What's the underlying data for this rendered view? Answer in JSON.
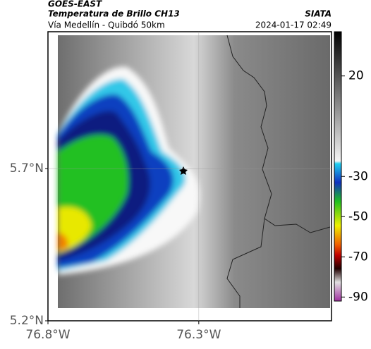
{
  "header": {
    "source": "GOES-EAST",
    "title": "Temperatura de Brillo CH13",
    "subtitle": "Vía Medellín - Quibdó 50km",
    "agency": "SIATA",
    "datetime": "2024-01-17 02:49"
  },
  "map": {
    "xlim": [
      -76.8,
      -75.86
    ],
    "ylim": [
      5.2,
      6.15
    ],
    "xticks": [
      {
        "value": -76.8,
        "label": "76.8°W"
      },
      {
        "value": -76.3,
        "label": "76.3°W"
      }
    ],
    "yticks": [
      {
        "value": 5.7,
        "label": "5.7°N"
      },
      {
        "value": 5.2,
        "label": "5.2°N"
      }
    ],
    "grid": true
  },
  "colorbar": {
    "lim": [
      -92,
      42
    ],
    "ticks": [
      20,
      -30,
      -50,
      -70,
      -90
    ]
  }
}
